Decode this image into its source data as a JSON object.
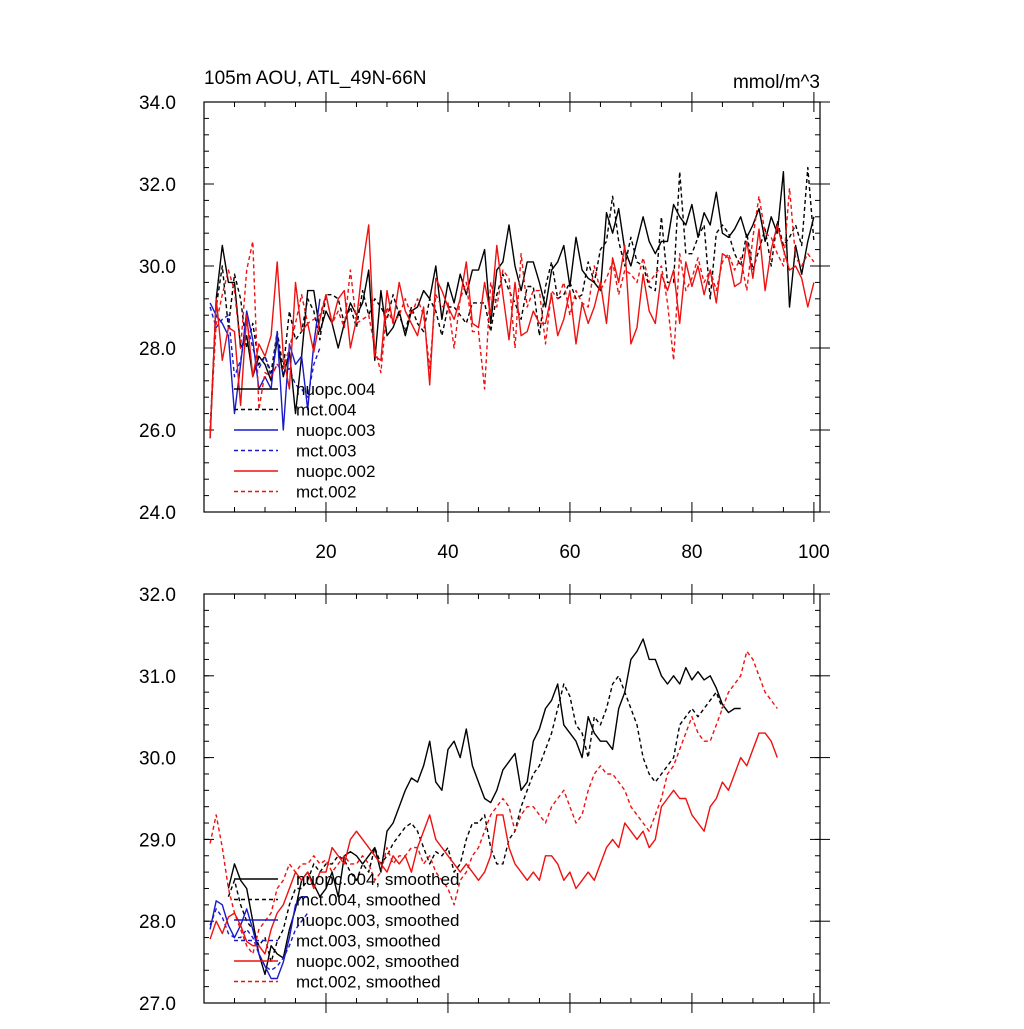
{
  "figure": {
    "title_left": "105m AOU, ATL_49N-66N",
    "title_right": "mmol/m^3"
  },
  "colors": {
    "nuopc.004": "#000000",
    "mct.004": "#000000",
    "nuopc.003": "#1a1acc",
    "mct.003": "#1a1acc",
    "nuopc.002": "#ee1111",
    "mct.002": "#ee1111"
  },
  "chart_data": [
    {
      "type": "line",
      "title": "105m AOU, ATL_49N-66N",
      "units": "mmol/m^3",
      "xlim": [
        0,
        101
      ],
      "ylim": [
        24,
        34
      ],
      "xticks": [
        20,
        40,
        60,
        80,
        100
      ],
      "yticks": [
        "24.0",
        "26.0",
        "28.0",
        "30.0",
        "32.0",
        "34.0"
      ],
      "legend": [
        "nuopc.004",
        "mct.004",
        "nuopc.003",
        "mct.003",
        "nuopc.002",
        "mct.002"
      ],
      "legend_position": "lower-left",
      "series": [
        {
          "name": "nuopc.004",
          "style": "solid",
          "x_start": 1,
          "values": [
            25.8,
            29.2,
            30.5,
            29.6,
            29.6,
            28.0,
            28.3,
            27.3,
            27.8,
            27.6,
            27.2,
            28.2,
            27.3,
            27.9,
            26.4,
            27.8,
            29.4,
            29.4,
            28.4,
            28.9,
            28.6,
            28.0,
            28.6,
            29.1,
            28.8,
            29.1,
            29.9,
            27.7,
            29.4,
            28.3,
            28.5,
            28.9,
            28.3,
            28.9,
            29.0,
            29.4,
            29.2,
            30.0,
            28.7,
            29.6,
            29.1,
            29.8,
            29.3,
            29.9,
            29.9,
            30.4,
            28.6,
            29.9,
            30.1,
            31.0,
            30.0,
            29.4,
            30.1,
            30.1,
            29.6,
            29.0,
            29.9,
            30.1,
            30.5,
            29.5,
            30.7,
            29.9,
            29.7,
            29.6,
            29.4,
            31.3,
            30.8,
            31.4,
            30.4,
            30.0,
            30.6,
            31.2,
            30.6,
            30.3,
            30.6,
            30.6,
            31.5,
            31.2,
            31.0,
            31.5,
            30.7,
            31.3,
            31.0,
            31.8,
            30.8,
            30.7,
            30.9,
            31.2,
            30.7,
            31.0,
            31.4,
            30.6,
            31.2,
            30.8,
            32.3,
            29.0,
            30.5,
            29.8,
            30.6,
            31.2
          ]
        },
        {
          "name": "mct.004",
          "style": "dash",
          "x_start": 1,
          "values": [
            26.0,
            29.0,
            30.0,
            28.5,
            29.8,
            29.2,
            28.0,
            28.6,
            27.6,
            27.8,
            27.4,
            28.4,
            27.5,
            28.9,
            28.2,
            28.4,
            29.2,
            28.9,
            28.2,
            29.3,
            29.3,
            29.2,
            28.6,
            29.0,
            28.5,
            29.4,
            28.8,
            29.2,
            29.0,
            28.7,
            29.3,
            28.8,
            28.4,
            29.0,
            28.6,
            28.4,
            29.2,
            28.9,
            28.3,
            29.0,
            29.0,
            28.8,
            28.6,
            29.1,
            29.1,
            29.1,
            28.4,
            29.3,
            29.8,
            29.4,
            29.1,
            28.7,
            29.5,
            29.5,
            28.3,
            29.5,
            30.1,
            29.2,
            29.3,
            29.6,
            29.2,
            29.3,
            30.1,
            29.6,
            30.4,
            30.6,
            31.7,
            30.6,
            30.0,
            30.7,
            30.1,
            30.0,
            29.5,
            29.4,
            31.2,
            29.6,
            29.6,
            32.3,
            30.3,
            30.3,
            30.7,
            31.0,
            29.2,
            30.8,
            31.0,
            30.8,
            30.3,
            30.0,
            30.8,
            29.9,
            30.4,
            30.9,
            30.0,
            31.1,
            30.5,
            30.7,
            31.0,
            30.5,
            32.4,
            30.6
          ]
        },
        {
          "name": "nuopc.003",
          "style": "solid",
          "x_start": 1,
          "values": [
            29.1,
            28.8,
            28.6,
            28.3,
            26.4,
            27.6,
            28.9,
            28.2,
            27.0,
            27.3,
            27.0,
            28.4,
            26.0,
            28.1,
            27.6,
            27.8,
            26.5,
            28.1,
            29.2
          ]
        },
        {
          "name": "mct.003",
          "style": "dash",
          "x_start": 1,
          "values": [
            29.0,
            28.5,
            28.7,
            28.8,
            27.3,
            27.7,
            28.6,
            28.0,
            27.5,
            27.8,
            27.3,
            27.6,
            27.4,
            27.5,
            27.1,
            27.0,
            26.8,
            27.6,
            28.0
          ]
        },
        {
          "name": "nuopc.002",
          "style": "solid",
          "x_start": 1,
          "values": [
            25.8,
            29.2,
            27.7,
            28.5,
            28.4,
            26.6,
            28.8,
            27.3,
            28.1,
            27.8,
            28.3,
            30.1,
            27.8,
            27.0,
            29.6,
            28.4,
            28.6,
            27.9,
            28.7,
            29.3,
            28.6,
            29.2,
            29.4,
            28.0,
            28.7,
            30.0,
            31.0,
            27.8,
            27.7,
            29.4,
            28.6,
            29.6,
            28.9,
            28.6,
            28.3,
            29.0,
            27.1,
            29.7,
            29.4,
            29.0,
            28.7,
            29.2,
            30.1,
            28.6,
            28.5,
            29.6,
            28.8,
            30.5,
            29.3,
            28.2,
            29.6,
            28.3,
            28.4,
            28.9,
            28.6,
            28.6,
            29.3,
            28.3,
            28.7,
            29.4,
            28.1,
            29.1,
            28.6,
            29.0,
            29.6,
            28.6,
            30.2,
            29.6,
            30.5,
            28.1,
            28.5,
            29.8,
            28.9,
            28.6,
            29.8,
            29.4,
            29.9,
            28.6,
            30.1,
            29.5,
            30.0,
            29.3,
            29.9,
            29.1,
            30.3,
            30.2,
            29.5,
            29.6,
            30.6,
            29.7,
            30.9,
            29.4,
            30.4,
            31.0,
            30.4,
            29.9,
            30.0,
            29.7,
            29.0,
            29.6
          ]
        },
        {
          "name": "mct.002",
          "style": "dash",
          "x_start": 1,
          "values": [
            26.0,
            28.6,
            29.3,
            29.9,
            29.4,
            28.0,
            29.9,
            30.6,
            26.5,
            27.4,
            27.3,
            27.6,
            27.5,
            28.0,
            28.6,
            29.3,
            28.6,
            28.7,
            28.8,
            29.3,
            28.6,
            28.9,
            28.5,
            29.9,
            28.6,
            28.7,
            28.8,
            28.0,
            27.4,
            29.0,
            28.6,
            28.8,
            29.2,
            28.8,
            29.2,
            28.8,
            27.5,
            29.3,
            29.0,
            29.1,
            28.0,
            29.2,
            29.6,
            28.4,
            28.4,
            27.0,
            29.6,
            29.0,
            29.9,
            29.7,
            28.0,
            30.3,
            29.0,
            29.4,
            29.4,
            28.1,
            29.4,
            29.2,
            29.6,
            28.8,
            29.4,
            29.1,
            29.0,
            30.0,
            29.4,
            29.7,
            30.1,
            29.3,
            29.9,
            29.8,
            29.6,
            30.2,
            29.6,
            29.8,
            30.0,
            29.1,
            27.7,
            30.3,
            29.4,
            29.7,
            30.2,
            29.6,
            29.9,
            29.4,
            30.1,
            30.3,
            29.9,
            30.2,
            29.4,
            30.7,
            31.7,
            30.8,
            30.7,
            30.3,
            30.0,
            31.9,
            30.2,
            30.0,
            30.3,
            30.1
          ]
        }
      ]
    },
    {
      "type": "line",
      "xlim": [
        0,
        101
      ],
      "ylim": [
        27,
        32
      ],
      "xticks": [
        20,
        40,
        60,
        80,
        100
      ],
      "yticks": [
        "27.0",
        "28.0",
        "29.0",
        "30.0",
        "31.0",
        "32.0"
      ],
      "legend": [
        "nuopc.004, smoothed",
        "mct.004, smoothed",
        "nuopc.003, smoothed",
        "mct.003, smoothed",
        "nuopc.002, smoothed",
        "mct.002, smoothed"
      ],
      "legend_position": "lower-left",
      "series": [
        {
          "name": "nuopc.004, smoothed",
          "style": "solid",
          "x_start": 4,
          "values": [
            28.4,
            28.7,
            28.5,
            28.4,
            28.0,
            27.6,
            27.35,
            27.7,
            27.6,
            27.55,
            27.9,
            28.15,
            28.5,
            28.6,
            28.45,
            28.3,
            28.4,
            28.6,
            28.3,
            28.8,
            28.85,
            28.8,
            28.7,
            28.8,
            28.9,
            28.6,
            29.1,
            29.2,
            29.4,
            29.6,
            29.75,
            29.7,
            29.9,
            30.2,
            29.7,
            29.6,
            30.1,
            30.2,
            30.0,
            30.35,
            29.9,
            29.7,
            29.5,
            29.45,
            29.6,
            29.85,
            29.95,
            30.05,
            29.6,
            29.7,
            30.2,
            30.35,
            30.6,
            30.7,
            30.9,
            30.4,
            30.3,
            30.2,
            30.0,
            30.5,
            30.3,
            30.2,
            30.2,
            30.1,
            30.6,
            30.8,
            31.2,
            31.3,
            31.45,
            31.2,
            31.2,
            31.0,
            30.9,
            31.0,
            30.9,
            31.1,
            30.95,
            31.05,
            30.95,
            31.0,
            30.85,
            30.65,
            30.55,
            30.6,
            30.6
          ]
        },
        {
          "name": "mct.004, smoothed",
          "style": "dash",
          "x_start": 4,
          "values": [
            28.3,
            28.5,
            28.2,
            28.0,
            27.9,
            27.7,
            27.8,
            27.5,
            27.75,
            27.9,
            28.2,
            28.4,
            28.4,
            28.5,
            28.7,
            28.6,
            28.7,
            28.7,
            28.8,
            28.75,
            28.6,
            28.5,
            28.7,
            28.6,
            28.9,
            28.7,
            28.8,
            28.95,
            29.05,
            29.15,
            29.2,
            29.1,
            28.9,
            28.7,
            28.85,
            28.8,
            28.9,
            28.6,
            28.7,
            29.0,
            29.2,
            29.2,
            29.3,
            28.9,
            28.7,
            28.7,
            29.0,
            29.1,
            29.4,
            29.6,
            29.8,
            29.9,
            30.1,
            30.3,
            30.6,
            30.9,
            30.75,
            30.4,
            30.3,
            30.0,
            30.5,
            30.4,
            30.6,
            30.9,
            31.0,
            30.8,
            30.6,
            30.4,
            30.0,
            29.8,
            29.7,
            29.8,
            29.9,
            30.0,
            30.4,
            30.5,
            30.6,
            30.5,
            30.6,
            30.7,
            30.8,
            30.6
          ]
        },
        {
          "name": "nuopc.003, smoothed",
          "style": "solid",
          "x_start": 1,
          "values": [
            27.9,
            28.25,
            28.2,
            27.95,
            27.8,
            27.95,
            28.15,
            27.9,
            27.6,
            27.45,
            27.3,
            27.3,
            27.5,
            27.8,
            28.2,
            28.3,
            28.3
          ]
        },
        {
          "name": "mct.003, smoothed",
          "style": "dash",
          "x_start": 1,
          "values": [
            27.95,
            28.15,
            28.05,
            27.85,
            27.8,
            27.8,
            27.9,
            27.8,
            27.6,
            27.45,
            27.4,
            27.45,
            27.55,
            27.7,
            27.9,
            28.0,
            28.1
          ]
        },
        {
          "name": "nuopc.002, smoothed",
          "style": "solid",
          "x_start": 1,
          "values": [
            27.78,
            28.0,
            27.85,
            28.05,
            28.1,
            27.95,
            27.75,
            27.7,
            27.7,
            27.6,
            27.9,
            28.1,
            28.2,
            28.4,
            28.6,
            28.5,
            28.6,
            28.4,
            28.6,
            28.6,
            28.9,
            28.8,
            28.7,
            29.0,
            29.1,
            29.0,
            28.9,
            28.8,
            28.7,
            28.6,
            28.8,
            28.7,
            28.8,
            28.6,
            28.9,
            29.1,
            29.3,
            29.0,
            28.9,
            28.8,
            28.7,
            28.6,
            28.7,
            28.6,
            28.5,
            28.6,
            28.8,
            29.3,
            29.3,
            28.9,
            28.7,
            28.6,
            28.5,
            28.6,
            28.5,
            28.8,
            28.8,
            28.7,
            28.5,
            28.6,
            28.4,
            28.5,
            28.6,
            28.5,
            28.7,
            28.9,
            29.0,
            28.9,
            29.2,
            29.1,
            29.0,
            29.1,
            28.9,
            29.0,
            29.4,
            29.5,
            29.6,
            29.5,
            29.5,
            29.3,
            29.2,
            29.1,
            29.4,
            29.5,
            29.7,
            29.6,
            29.8,
            30.0,
            29.9,
            30.1,
            30.3,
            30.3,
            30.2,
            30.0
          ]
        },
        {
          "name": "mct.002, smoothed",
          "style": "dash",
          "x_start": 1,
          "values": [
            28.95,
            29.3,
            28.9,
            28.4,
            28.1,
            27.9,
            27.7,
            27.6,
            27.9,
            28.0,
            28.1,
            28.4,
            28.5,
            28.7,
            28.6,
            28.7,
            28.7,
            28.8,
            28.7,
            28.75,
            28.6,
            28.7,
            28.8,
            28.7,
            28.7,
            28.8,
            28.7,
            28.5,
            28.6,
            28.9,
            28.7,
            28.8,
            28.8,
            28.9,
            28.9,
            28.7,
            28.8,
            28.6,
            28.5,
            28.4,
            28.2,
            28.5,
            28.6,
            28.8,
            28.9,
            29.1,
            29.3,
            29.4,
            29.5,
            29.4,
            29.1,
            29.3,
            29.4,
            29.4,
            29.3,
            29.2,
            29.4,
            29.5,
            29.6,
            29.4,
            29.2,
            29.3,
            29.6,
            29.8,
            29.9,
            29.8,
            29.8,
            29.7,
            29.6,
            29.4,
            29.3,
            29.2,
            29.1,
            29.3,
            29.5,
            29.8,
            29.9,
            30.1,
            30.3,
            30.5,
            30.3,
            30.2,
            30.2,
            30.4,
            30.6,
            30.8,
            30.9,
            31.0,
            31.3,
            31.2,
            31.0,
            30.8,
            30.7,
            30.6
          ]
        }
      ]
    }
  ]
}
